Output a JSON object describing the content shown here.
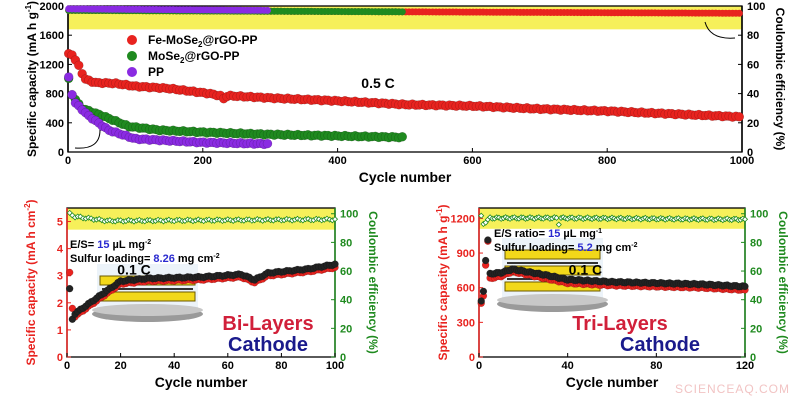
{
  "watermark": "SCIENCEAQ.COM",
  "chart_data": [
    {
      "type": "scatter",
      "xlabel": "Cycle number",
      "ylabel": "Specific capacity (mA h g",
      "ylabel_sup": "-1",
      "ylabel_end": ")",
      "y2label": "Coulombic efficiency (%)",
      "xlim": [
        0,
        1000
      ],
      "ylim": [
        0,
        2000
      ],
      "y2lim": [
        0,
        100
      ],
      "xticks": [
        0,
        200,
        400,
        600,
        800,
        1000
      ],
      "yticks": [
        0,
        400,
        800,
        1200,
        1600,
        2000
      ],
      "y2ticks": [
        0,
        20,
        40,
        60,
        80,
        100
      ],
      "highlight_band_y": [
        1680,
        2000
      ],
      "annotation": "0.5 C",
      "legend_placement": "top-left",
      "series": [
        {
          "name": "Fe-MoSe",
          "name_sub": "2",
          "name_end": "@rGO-PP",
          "color": "#e8231f",
          "x": [
            1,
            5,
            15,
            25,
            40,
            70,
            100,
            150,
            210,
            226,
            228,
            232,
            240,
            300,
            400,
            500,
            600,
            700,
            800,
            900,
            1000
          ],
          "y": [
            1340,
            1350,
            1200,
            1000,
            950,
            940,
            900,
            870,
            800,
            770,
            640,
            760,
            770,
            740,
            700,
            650,
            630,
            590,
            560,
            520,
            480
          ],
          "ce_x": [
            1,
            1000
          ],
          "ce_y": [
            97,
            95
          ]
        },
        {
          "name": "MoSe",
          "name_sub": "2",
          "name_end": "@rGO-PP",
          "color": "#1f8a1f",
          "x": [
            1,
            5,
            20,
            50,
            90,
            135,
            200,
            300,
            400,
            500
          ],
          "y": [
            1000,
            800,
            600,
            500,
            350,
            300,
            270,
            240,
            220,
            200
          ],
          "ce_x": [
            1,
            500
          ],
          "ce_y": [
            97,
            96
          ]
        },
        {
          "name": "PP",
          "name_sub": "",
          "name_end": "",
          "color": "#8a2be2",
          "x": [
            1,
            8,
            30,
            60,
            100,
            200,
            300
          ],
          "y": [
            1020,
            700,
            500,
            300,
            180,
            130,
            110
          ],
          "ce_x": [
            1,
            300
          ],
          "ce_y": [
            98,
            97
          ]
        }
      ]
    },
    {
      "type": "scatter",
      "xlabel": "Cycle number",
      "ylabel": "Specific capacity (mA h cm",
      "ylabel_sup": "-2",
      "ylabel_end": ")",
      "y2label": "Coulombic efficiency (%)",
      "xlim": [
        0,
        100
      ],
      "ylim": [
        0,
        5.5
      ],
      "y2lim": [
        0,
        104
      ],
      "xticks": [
        0,
        20,
        40,
        60,
        80,
        100
      ],
      "yticks": [
        0,
        1,
        2,
        3,
        4,
        5
      ],
      "y2ticks": [
        0,
        20,
        40,
        60,
        80,
        100
      ],
      "highlight_band_y": [
        4.7,
        5.5
      ],
      "annotation": "0.1 C",
      "text_lines": [
        {
          "a": "E/S= ",
          "b": "15",
          "c": " µL mg",
          "sup": "-2"
        },
        {
          "a": "Sulfur loading= ",
          "b": "8.26",
          "c": " mg cm",
          "sup": "-2"
        }
      ],
      "caption_1": "Bi-Layers",
      "caption_2": "Cathode",
      "inset_layers": 2,
      "series": [
        {
          "color": "#e8231f",
          "x": [
            1,
            2,
            3,
            10,
            20,
            30,
            50,
            65,
            70,
            75,
            90,
            100
          ],
          "y": [
            3.1,
            1.8,
            1.5,
            2.0,
            2.7,
            2.8,
            2.85,
            2.95,
            2.75,
            3.0,
            3.15,
            3.3
          ]
        },
        {
          "color": "#222222",
          "x": [
            1,
            2,
            3,
            10,
            20,
            30,
            50,
            65,
            70,
            75,
            90,
            100
          ],
          "y": [
            2.5,
            1.4,
            1.6,
            2.1,
            2.8,
            2.9,
            2.95,
            3.05,
            2.85,
            3.1,
            3.25,
            3.42
          ]
        },
        {
          "color": "#1f8a1f",
          "role": "ce",
          "x": [
            1,
            3,
            15,
            100
          ],
          "y": [
            100,
            98,
            95,
            96
          ]
        }
      ]
    },
    {
      "type": "scatter",
      "xlabel": "Cycle number",
      "ylabel": "Specific capacity (mA h g",
      "ylabel_sup": "-1",
      "ylabel_end": ")",
      "y2label": "Coulombic efficiency (%)",
      "xlim": [
        0,
        120
      ],
      "ylim": [
        0,
        1290
      ],
      "y2lim": [
        0,
        104
      ],
      "xticks": [
        0,
        40,
        80,
        120
      ],
      "yticks": [
        0,
        300,
        600,
        900,
        1200
      ],
      "y2ticks": [
        0,
        20,
        40,
        60,
        80,
        100
      ],
      "highlight_band_y": [
        1110,
        1290
      ],
      "annotation": "0.1 C",
      "text_lines": [
        {
          "a": "E/S ratio= ",
          "b": "15",
          "c": " µL mg",
          "sup": "-1"
        },
        {
          "a": "Sulfur loading= ",
          "b": "5.2",
          "c": " mg cm",
          "sup": "-2"
        }
      ],
      "caption_1": "Tri-Layers",
      "caption_2": "Cathode",
      "inset_layers": 3,
      "series": [
        {
          "color": "#e8231f",
          "x": [
            1,
            2,
            3,
            4,
            5,
            10,
            15,
            30,
            40,
            60,
            80,
            100,
            120
          ],
          "y": [
            460,
            530,
            800,
            1000,
            680,
            700,
            740,
            680,
            640,
            620,
            610,
            600,
            580
          ]
        },
        {
          "color": "#222222",
          "x": [
            1,
            2,
            3,
            4,
            5,
            10,
            15,
            30,
            40,
            60,
            80,
            100,
            120
          ],
          "y": [
            480,
            570,
            840,
            1010,
            720,
            730,
            760,
            710,
            670,
            650,
            640,
            630,
            610
          ]
        },
        {
          "color": "#1f8a1f",
          "role": "ce",
          "x": [
            1,
            2,
            5,
            35,
            36,
            37,
            120
          ],
          "y": [
            98,
            93,
            97,
            97,
            93,
            97,
            96
          ]
        }
      ]
    }
  ]
}
